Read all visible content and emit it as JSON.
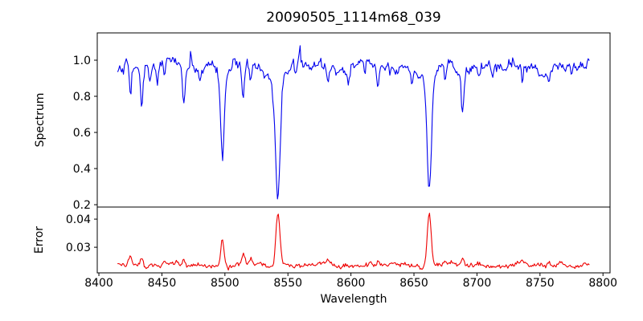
{
  "figure": {
    "background_color": "#ffffff",
    "axis_color": "#000000"
  },
  "chart_data": {
    "type": "line",
    "title": "20090505_1114m68_039",
    "grid": false,
    "legend": null,
    "noise_seed": 42,
    "x": {
      "label": "Wavelength",
      "lim": [
        8398.7,
        8805.6
      ],
      "ticks": [
        8400,
        8450,
        8500,
        8550,
        8600,
        8650,
        8700,
        8750,
        8800
      ],
      "tick_labels": [
        "8400",
        "8450",
        "8500",
        "8550",
        "8600",
        "8650",
        "8700",
        "8750",
        "8800"
      ]
    },
    "panels": [
      {
        "name": "spectrum",
        "ylabel": "Spectrum",
        "line_color": "#0000ee",
        "ylim": [
          0.187,
          1.151
        ],
        "yticks": [
          0.2,
          0.4,
          0.6,
          0.8,
          1.0
        ],
        "ytick_labels": [
          "0.2",
          "0.4",
          "0.6",
          "0.8",
          "1.0"
        ],
        "model": {
          "x_start": 8415,
          "x_end": 8789,
          "n_points": 500,
          "continuum_start": 0.975,
          "continuum_end": 0.955,
          "white_noise_sigma": 0.012,
          "smooth_noise_amp": 0.017,
          "absorption_lines_columns": [
            "center_wavelength",
            "depth",
            "sigma"
          ],
          "absorption_lines": [
            [
              8425.0,
              0.16,
              0.9
            ],
            [
              8434.0,
              0.23,
              1.0
            ],
            [
              8440.5,
              0.12,
              0.8
            ],
            [
              8446.5,
              0.09,
              0.8
            ],
            [
              8452.0,
              0.08,
              0.7
            ],
            [
              8467.5,
              0.18,
              1.0
            ],
            [
              8480.0,
              0.07,
              0.8
            ],
            [
              8498.0,
              0.46,
              1.4
            ],
            [
              8498.0,
              0.05,
              5.0
            ],
            [
              8514.5,
              0.19,
              1.0
            ],
            [
              8520.5,
              0.1,
              0.8
            ],
            [
              8538.5,
              0.08,
              1.0
            ],
            [
              8542.1,
              0.66,
              1.8
            ],
            [
              8542.1,
              0.07,
              6.0
            ],
            [
              8556.0,
              0.07,
              0.8
            ],
            [
              8582.0,
              0.08,
              0.8
            ],
            [
              8598.0,
              0.07,
              0.7
            ],
            [
              8611.0,
              0.07,
              0.7
            ],
            [
              8621.5,
              0.13,
              0.9
            ],
            [
              8648.5,
              0.08,
              0.8
            ],
            [
              8662.1,
              0.63,
              1.7
            ],
            [
              8662.1,
              0.06,
              5.5
            ],
            [
              8675.0,
              0.11,
              0.8
            ],
            [
              8688.6,
              0.25,
              1.0
            ],
            [
              8712.0,
              0.07,
              0.7
            ],
            [
              8736.0,
              0.08,
              0.8
            ],
            [
              8757.0,
              0.07,
              0.7
            ],
            [
              8775.0,
              0.06,
              0.7
            ]
          ],
          "upward_spikes_columns": [
            "center_wavelength",
            "height",
            "sigma"
          ],
          "upward_spikes": [
            [
              8473.0,
              0.12,
              0.5
            ],
            [
              8559.5,
              0.1,
              0.5
            ],
            [
              8601.0,
              0.06,
              0.5
            ],
            [
              8788.5,
              0.08,
              0.8
            ]
          ]
        }
      },
      {
        "name": "error",
        "ylabel": "Error",
        "line_color": "#ee0000",
        "ylim": [
          0.0209,
          0.0443
        ],
        "yticks": [
          0.03,
          0.04
        ],
        "ytick_labels": [
          "0.03",
          "0.04"
        ],
        "model": {
          "x_start": 8415,
          "x_end": 8789,
          "n_points": 500,
          "baseline": 0.0236,
          "white_noise_sigma": 0.00035,
          "smooth_noise_amp": 0.00045,
          "error_peaks_columns": [
            "center_wavelength",
            "height",
            "sigma"
          ],
          "error_peaks": [
            [
              8425.0,
              0.0025,
              1.2
            ],
            [
              8434.0,
              0.003,
              1.2
            ],
            [
              8441.0,
              0.0015,
              1.0
            ],
            [
              8452.0,
              0.0012,
              0.9
            ],
            [
              8467.5,
              0.0018,
              1.0
            ],
            [
              8498.0,
              0.0095,
              1.3
            ],
            [
              8514.5,
              0.003,
              1.1
            ],
            [
              8520.5,
              0.0015,
              0.9
            ],
            [
              8542.1,
              0.019,
              1.6
            ],
            [
              8582.0,
              0.0012,
              0.9
            ],
            [
              8621.5,
              0.0012,
              0.9
            ],
            [
              8662.1,
              0.019,
              1.6
            ],
            [
              8675.0,
              0.0012,
              0.9
            ],
            [
              8688.6,
              0.0028,
              1.0
            ],
            [
              8736.0,
              0.001,
              0.9
            ],
            [
              8757.0,
              0.0014,
              0.9
            ],
            [
              8766.0,
              0.0016,
              0.9
            ]
          ]
        }
      }
    ]
  }
}
